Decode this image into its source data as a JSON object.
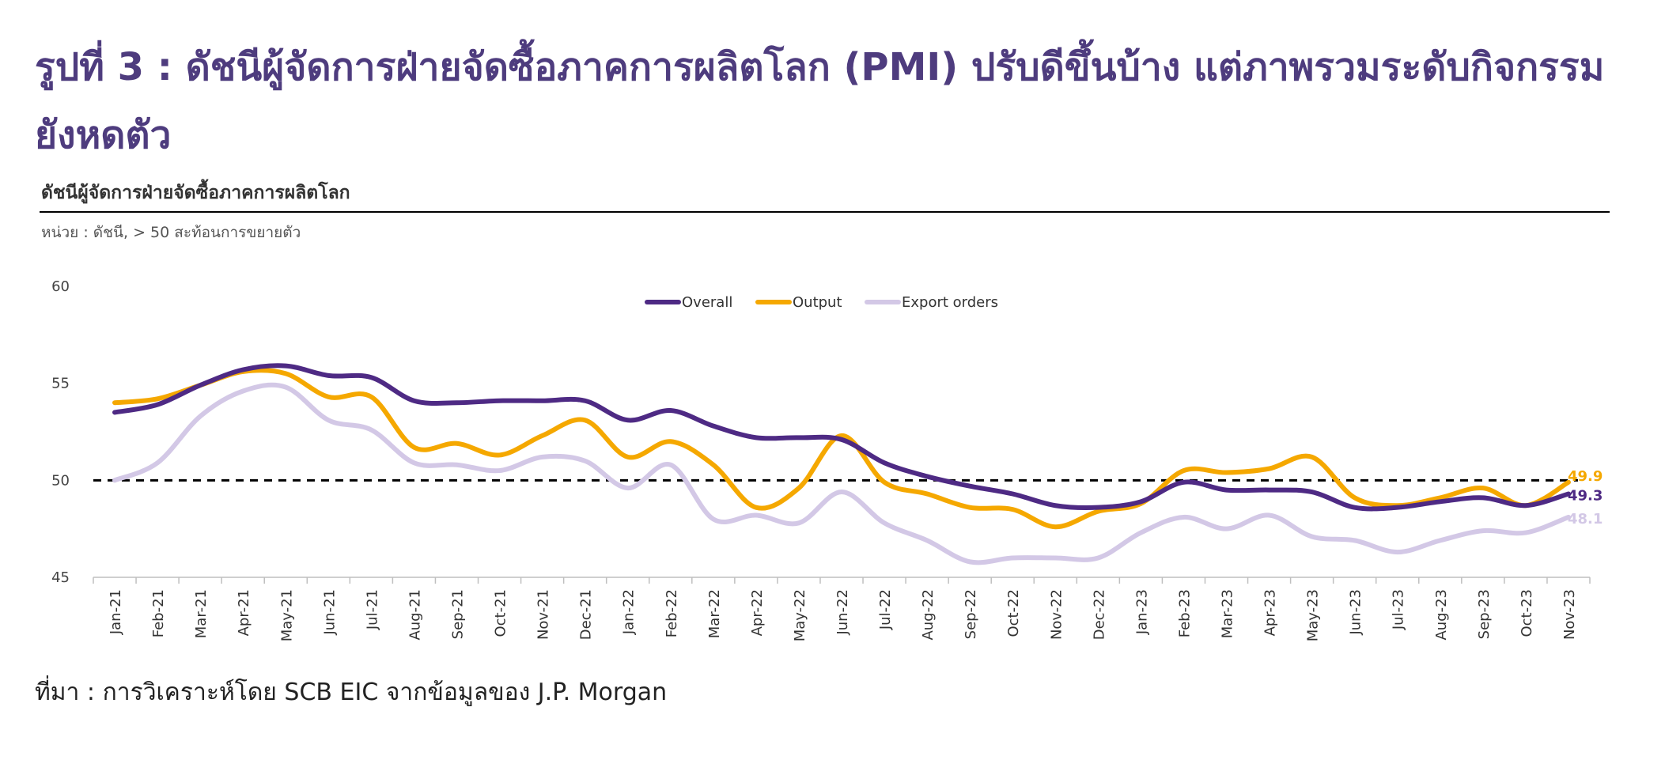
{
  "page": {
    "title": "รูปที่ 3 : ดัชนีผู้จัดการฝ่ายจัดซื้อภาคการผลิตโลก (PMI) ปรับดีขึ้นบ้าง แต่ภาพรวมระดับกิจกรรมยังหดตัว",
    "chart_heading": "ดัชนีผู้จัดการฝ่ายจัดซื้อภาคการผลิตโลก",
    "unit_note": "หน่วย : ดัชนี, > 50 สะท้อนการขยายตัว",
    "source_note": "ที่มา : การวิเคราะห์โดย SCB EIC จากข้อมูลของ J.P. Morgan"
  },
  "chart_data": {
    "type": "line",
    "categories": [
      "Jan-21",
      "Feb-21",
      "Mar-21",
      "Apr-21",
      "May-21",
      "Jun-21",
      "Jul-21",
      "Aug-21",
      "Sep-21",
      "Oct-21",
      "Nov-21",
      "Dec-21",
      "Jan-22",
      "Feb-22",
      "Mar-22",
      "Apr-22",
      "May-22",
      "Jun-22",
      "Jul-22",
      "Aug-22",
      "Sep-22",
      "Oct-22",
      "Nov-22",
      "Dec-22",
      "Jan-23",
      "Feb-23",
      "Mar-23",
      "Apr-23",
      "May-23",
      "Jun-23",
      "Jul-23",
      "Aug-23",
      "Sep-23",
      "Oct-23",
      "Nov-23"
    ],
    "series": [
      {
        "name": "Overall",
        "color": "#4e2a84",
        "values": [
          53.5,
          53.9,
          54.9,
          55.7,
          55.9,
          55.4,
          55.3,
          54.1,
          54.0,
          54.1,
          54.1,
          54.1,
          53.1,
          53.6,
          52.8,
          52.2,
          52.2,
          52.1,
          50.9,
          50.2,
          49.7,
          49.3,
          48.7,
          48.6,
          48.9,
          49.9,
          49.5,
          49.5,
          49.4,
          48.6,
          48.6,
          48.9,
          49.1,
          48.7,
          49.3
        ]
      },
      {
        "name": "Output",
        "color": "#f5a800",
        "values": [
          54.0,
          54.2,
          54.9,
          55.6,
          55.5,
          54.3,
          54.3,
          51.7,
          51.9,
          51.3,
          52.3,
          53.1,
          51.2,
          52.0,
          50.8,
          48.6,
          49.6,
          52.3,
          49.9,
          49.3,
          48.6,
          48.5,
          47.6,
          48.4,
          48.8,
          50.5,
          50.4,
          50.6,
          51.2,
          49.1,
          48.7,
          49.1,
          49.6,
          48.7,
          49.9
        ]
      },
      {
        "name": "Export orders",
        "color": "#d3c8e6",
        "values": [
          50.0,
          50.9,
          53.3,
          54.6,
          54.8,
          53.1,
          52.6,
          50.9,
          50.8,
          50.5,
          51.2,
          51.0,
          49.6,
          50.8,
          48.0,
          48.2,
          47.8,
          49.4,
          47.8,
          46.9,
          45.8,
          46.0,
          46.0,
          46.0,
          47.3,
          48.1,
          47.5,
          48.2,
          47.1,
          46.9,
          46.3,
          46.9,
          47.4,
          47.3,
          48.1
        ]
      }
    ],
    "end_labels": [
      "49.3",
      "49.9",
      "48.1"
    ],
    "reference_line": {
      "value": 50,
      "style": "dashed",
      "color": "#000000"
    },
    "y_axis": {
      "min": 45,
      "max": 60,
      "ticks": [
        "45",
        "50",
        "55",
        "60"
      ]
    },
    "legend": {
      "position": "top-center",
      "entries": [
        "Overall",
        "Output",
        "Export orders"
      ]
    },
    "grid": false,
    "title": "ดัชนีผู้จัดการฝ่ายจัดซื้อภาคการผลิตโลก",
    "xlabel": "",
    "ylabel": ""
  }
}
